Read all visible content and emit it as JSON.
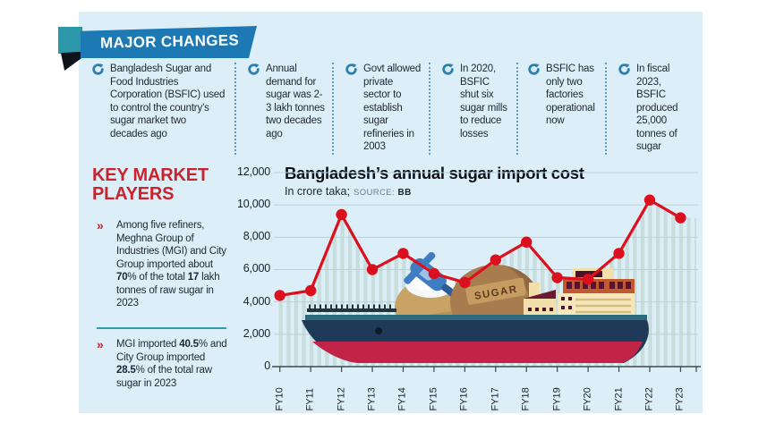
{
  "banner": {
    "label": "MAJOR CHANGES",
    "bg": "#1d79b4",
    "tab_color": "#2b97a9",
    "text_color": "#ffffff"
  },
  "major_changes": {
    "items": [
      {
        "text": "Bangladesh Sugar and Food Industries Corporation (BSFIC) used to control the country’s sugar market two decades ago"
      },
      {
        "text": "Annual demand for sugar was 2-3 lakh tonnes two decades ago"
      },
      {
        "text": "Govt allowed private sector to establish sugar refineries in 2003"
      },
      {
        "text": "In 2020, BSFIC shut six sugar mills to reduce losses"
      },
      {
        "text": "BSFIC has only two factories operational now"
      },
      {
        "text": "In fiscal 2023, BSFIC produced 25,000 tonnes of sugar"
      }
    ]
  },
  "key_market_players": {
    "title": "KEY MARKET PLAYERS",
    "accent_color": "#c9232d",
    "items": [
      {
        "segments": [
          {
            "text": "Among five refiners, Meghna Group of Industries (MGI) and City Group imported about ",
            "bold": false
          },
          {
            "text": "70",
            "bold": true
          },
          {
            "text": "% of the total ",
            "bold": false
          },
          {
            "text": "17",
            "bold": true
          },
          {
            "text": " lakh tonnes of raw sugar in 2023",
            "bold": false
          }
        ]
      },
      {
        "segments": [
          {
            "text": "MGI imported ",
            "bold": false
          },
          {
            "text": "40.5",
            "bold": true
          },
          {
            "text": "% and City Group imported ",
            "bold": false
          },
          {
            "text": "28.5",
            "bold": true
          },
          {
            "text": "% of the total raw sugar in 2023",
            "bold": false
          }
        ]
      }
    ]
  },
  "chart_data": {
    "type": "line",
    "title": "Bangladesh’s annual sugar import cost",
    "unit_label": "In crore taka;",
    "source_label": "SOURCE:",
    "source": "BB",
    "x": [
      "FY10",
      "FY11",
      "FY12",
      "FY13",
      "FY14",
      "FY15",
      "FY16",
      "FY17",
      "FY18",
      "FY19",
      "FY20",
      "FY21",
      "FY22",
      "FY23"
    ],
    "values": [
      4400,
      4700,
      9400,
      6000,
      7000,
      5750,
      5200,
      6600,
      7700,
      5500,
      5400,
      7000,
      10300,
      9200
    ],
    "ylim": [
      0,
      12000
    ],
    "ytick_step": 2000,
    "grid": true,
    "legend": "none",
    "line_color": "#dc0f1e",
    "marker_color": "#dc0f1e",
    "stripe_fill_color": "#c7dedd",
    "grid_color": "#b6d2e2",
    "axis_color": "#3f474e"
  },
  "illustration": {
    "sack_label_left": "SUGAR",
    "sack_label_right": "SUGAR"
  }
}
